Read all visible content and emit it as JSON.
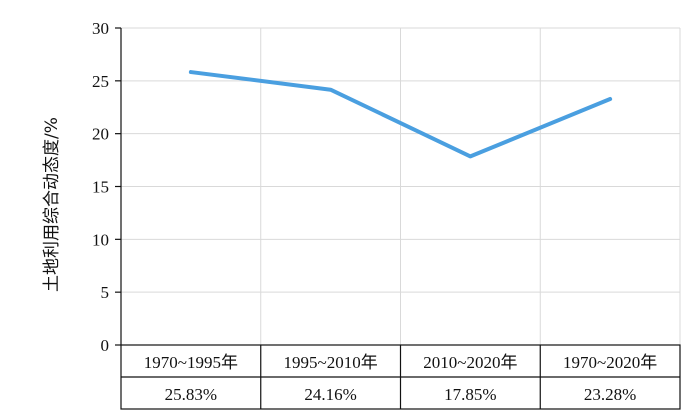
{
  "chart_data": {
    "type": "line",
    "ylabel": "土地利用综合动态度/%",
    "ylim": [
      0,
      30
    ],
    "yticks": [
      0,
      5,
      10,
      15,
      20,
      25,
      30
    ],
    "grid": true,
    "categories": [
      "1970~1995年",
      "1995~2010年",
      "2010~2020年",
      "1970~2020年"
    ],
    "series": [
      {
        "values": [
          25.83,
          24.16,
          17.85,
          23.28
        ]
      }
    ],
    "table_values": [
      "25.83%",
      "24.16%",
      "17.85%",
      "23.28%"
    ],
    "line_color": "#4a9fe0",
    "grid_color": "#d9d9d9"
  }
}
